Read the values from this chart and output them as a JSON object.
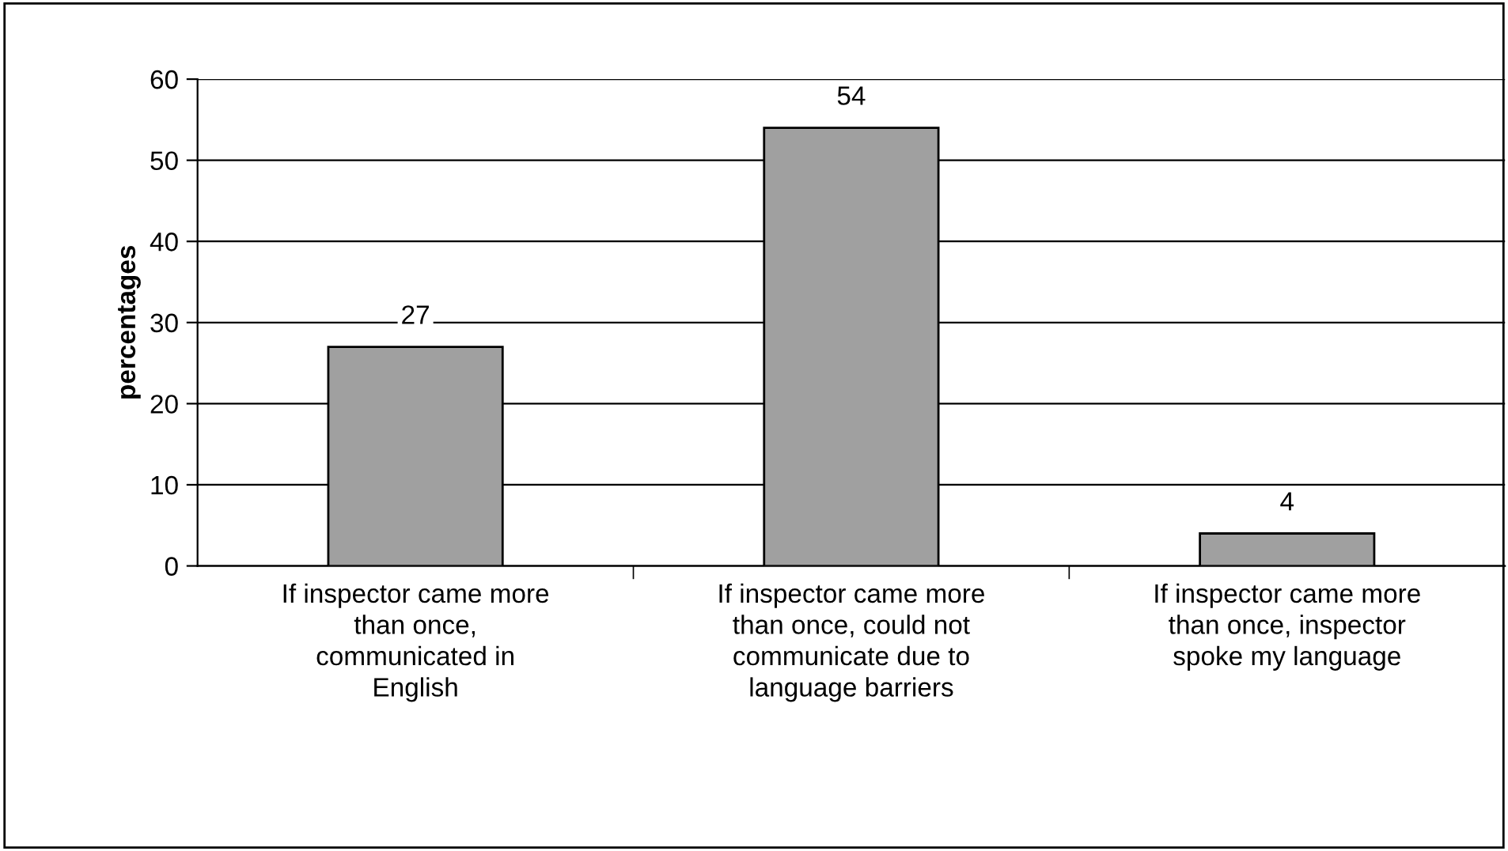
{
  "chart_data": {
    "type": "bar",
    "ylabel": "percentages",
    "categories": [
      "If inspector came more than once, communicated in English",
      "If inspector came more than once, could not communicate due to language barriers",
      "If inspector came more than once, inspector spoke my language"
    ],
    "values": [
      27,
      54,
      4
    ],
    "color": "#a0a0a0",
    "ylim": [
      0,
      60
    ],
    "yticks": [
      0,
      10,
      20,
      30,
      40,
      50,
      60
    ],
    "grid": "y",
    "data_labels": true
  }
}
